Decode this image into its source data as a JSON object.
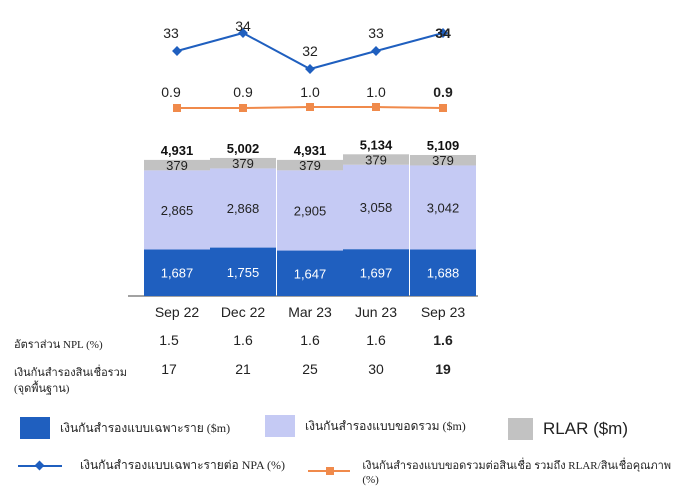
{
  "chart_data": {
    "type": "bar",
    "categories": [
      "Sep 22",
      "Dec 22",
      "Mar 23",
      "Jun 23",
      "Sep 23"
    ],
    "stacked_series": [
      {
        "name": "เงินกันสำรองแบบเฉพาะราย ($m)",
        "color": "#1f5fbf",
        "values": [
          1687,
          1755,
          1647,
          1697,
          1688
        ]
      },
      {
        "name": "เงินกันสำรองแบบขอดรวม ($m)",
        "color": "#c5caf4",
        "values": [
          2865,
          2868,
          2905,
          3058,
          3042
        ]
      },
      {
        "name": "RLAR ($m)",
        "color": "#c2c2c2",
        "values": [
          379,
          379,
          379,
          379,
          379
        ]
      }
    ],
    "totals": [
      "4,931",
      "5,002",
      "4,931",
      "5,134",
      "5,109"
    ],
    "bar_labels": {
      "bottom": [
        "1,687",
        "1,755",
        "1,647",
        "1,697",
        "1,688"
      ],
      "middle": [
        "2,865",
        "2,868",
        "2,905",
        "3,058",
        "3,042"
      ],
      "top": [
        "379",
        "379",
        "379",
        "379",
        "379"
      ]
    },
    "line_series": [
      {
        "name": "เงินกันสำรองแบบเฉพาะรายต่อ NPA (%)",
        "color": "#1f5fbf",
        "values": [
          33,
          34,
          32,
          33,
          34
        ],
        "labels": [
          "33",
          "34",
          "32",
          "33",
          "34"
        ]
      },
      {
        "name": "เงินกันสำรองแบบขอดรวมต่อสินเชื่อ รวมถึง RLAR/สินเชื่อคุณภาพ (%)",
        "color": "#f08a4b",
        "values": [
          0.9,
          0.9,
          1.0,
          1.0,
          0.9
        ],
        "labels": [
          "0.9",
          "0.9",
          "1.0",
          "1.0",
          "0.9"
        ]
      }
    ],
    "table_rows": [
      {
        "label": "อัตราส่วน NPL (%)",
        "values": [
          "1.5",
          "1.6",
          "1.6",
          "1.6",
          "1.6"
        ]
      },
      {
        "label": "เงินกันสำรองสินเชื่อรวม (จุดพื้นฐาน)",
        "values": [
          "17",
          "21",
          "25",
          "30",
          "19"
        ]
      }
    ],
    "legend": {
      "individual": "เงินกันสำรองแบบเฉพาะราย ($m)",
      "collective": "เงินกันสำรองแบบขอดรวม ($m)",
      "rlar": "RLAR ($m)",
      "npa_line": "เงินกันสำรองแบบเฉพาะรายต่อ NPA (%)",
      "coverage_line": "เงินกันสำรองแบบขอดรวมต่อสินเชื่อ รวมถึง RLAR/สินเชื่อคุณภาพ (%)"
    }
  }
}
